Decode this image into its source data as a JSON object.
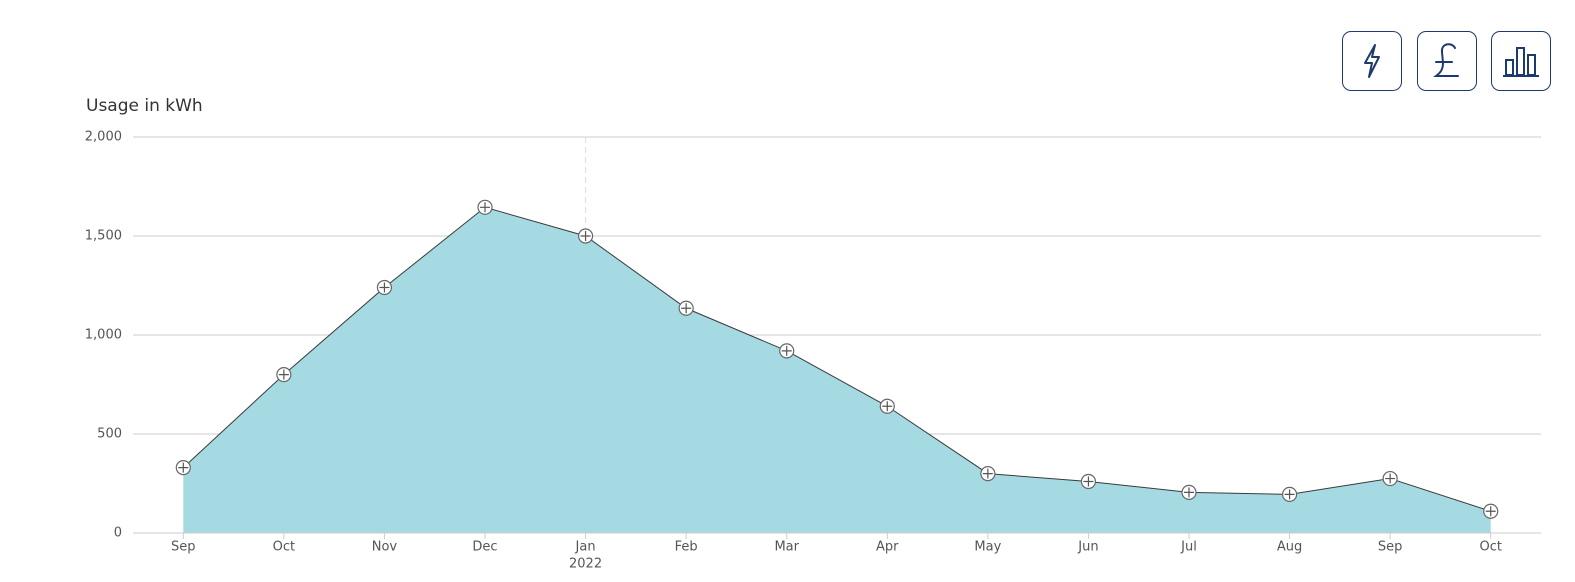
{
  "chart_data": {
    "type": "area",
    "y_label": "Usage in kWh",
    "categories": [
      "Sep",
      "Oct",
      "Nov",
      "Dec",
      "Jan",
      "Feb",
      "Mar",
      "Apr",
      "May",
      "Jun",
      "Jul",
      "Aug",
      "Sep",
      "Oct"
    ],
    "x_group_labels": [
      null,
      null,
      null,
      null,
      "2022",
      null,
      null,
      null,
      null,
      null,
      null,
      null,
      null,
      null
    ],
    "series": [
      {
        "name": "Usage",
        "color": "#a1d8e2",
        "line_color": "#3a3a3a",
        "values": [
          330,
          800,
          1240,
          1645,
          1500,
          1135,
          920,
          640,
          300,
          260,
          205,
          195,
          275,
          110
        ]
      }
    ],
    "ylim": [
      0,
      2000
    ],
    "yticks": [
      0,
      500,
      {
        "value": 1000,
        "label": "1,000"
      },
      {
        "value": 1500,
        "label": "1,500"
      },
      {
        "value": 2000,
        "label": "2,000"
      }
    ],
    "grid": true
  }
}
